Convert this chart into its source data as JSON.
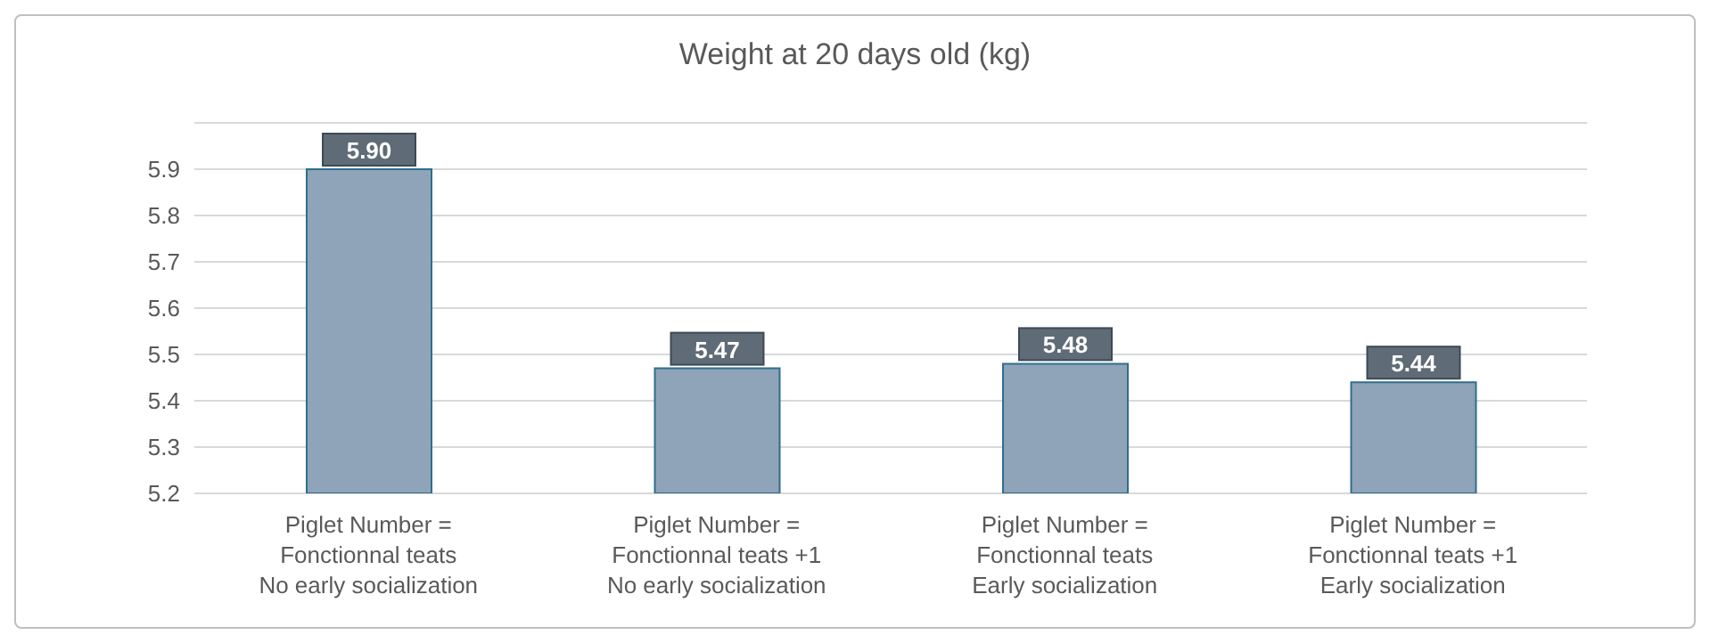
{
  "chart_data": {
    "type": "bar",
    "title": "Weight at 20 days old (kg)",
    "categories": [
      "Piglet Number =\nFonctionnal teats\nNo early socialization",
      "Piglet Number =\nFonctionnal teats +1\nNo early socialization",
      "Piglet Number =\nFonctionnal teats\nEarly socialization",
      "Piglet Number =\nFonctionnal teats +1\nEarly socialization"
    ],
    "values": [
      5.9,
      5.47,
      5.48,
      5.44
    ],
    "color": "#8fa4b9",
    "ylim": [
      5.2,
      6.0
    ],
    "yticks": [
      5.2,
      5.3,
      5.4,
      5.5,
      5.6,
      5.7,
      5.8,
      5.9,
      {
        "value": 6.0,
        "label": null
      }
    ],
    "grid": "y",
    "value_labels": [
      "5.90",
      "5.47",
      "5.48",
      "5.44"
    ]
  }
}
